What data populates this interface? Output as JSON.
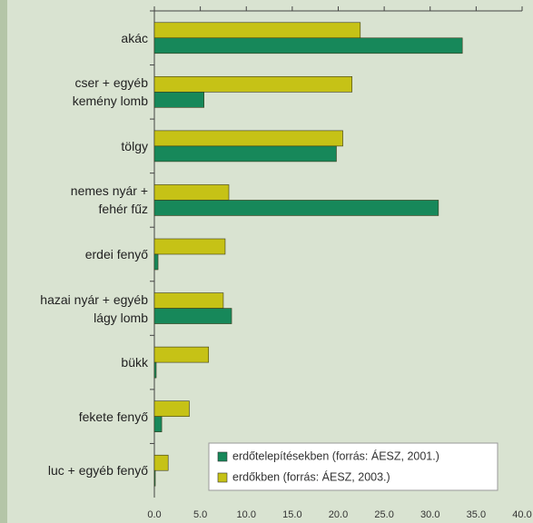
{
  "chart_data": {
    "type": "bar",
    "orientation": "horizontal",
    "categories": [
      "akác",
      "cser + egyéb\nkemény lomb",
      "tölgy",
      "nemes nyár +\nfehér fűz",
      "erdei fenyő",
      "hazai nyár + egyéb\nlágy lomb",
      "bükk",
      "fekete fenyő",
      "luc + egyéb fenyő"
    ],
    "series": [
      {
        "name": "erdőtelepítésekben (forrás: ÁESZ, 2001.)",
        "color": "#17885a",
        "values": [
          33.5,
          5.4,
          19.8,
          30.9,
          0.4,
          8.4,
          0.2,
          0.8,
          0.1
        ]
      },
      {
        "name": "erdőkben (forrás: ÁESZ, 2003.)",
        "color": "#c6c216",
        "values": [
          22.4,
          21.5,
          20.5,
          8.1,
          7.7,
          7.5,
          5.9,
          3.8,
          1.5
        ]
      }
    ],
    "xlim": [
      0,
      40
    ],
    "xticks": [
      {
        "value": 0,
        "label": "0.0"
      },
      {
        "value": 5,
        "label": "5.0"
      },
      {
        "value": 10,
        "label": "10.0"
      },
      {
        "value": 15,
        "label": "15.0"
      },
      {
        "value": 20,
        "label": "20.0"
      },
      {
        "value": 25,
        "label": "25.0"
      },
      {
        "value": 30,
        "label": "30.0"
      },
      {
        "value": 35,
        "label": "35.0"
      },
      {
        "value": 40,
        "label": "40.0"
      }
    ],
    "legend": "lower right"
  }
}
